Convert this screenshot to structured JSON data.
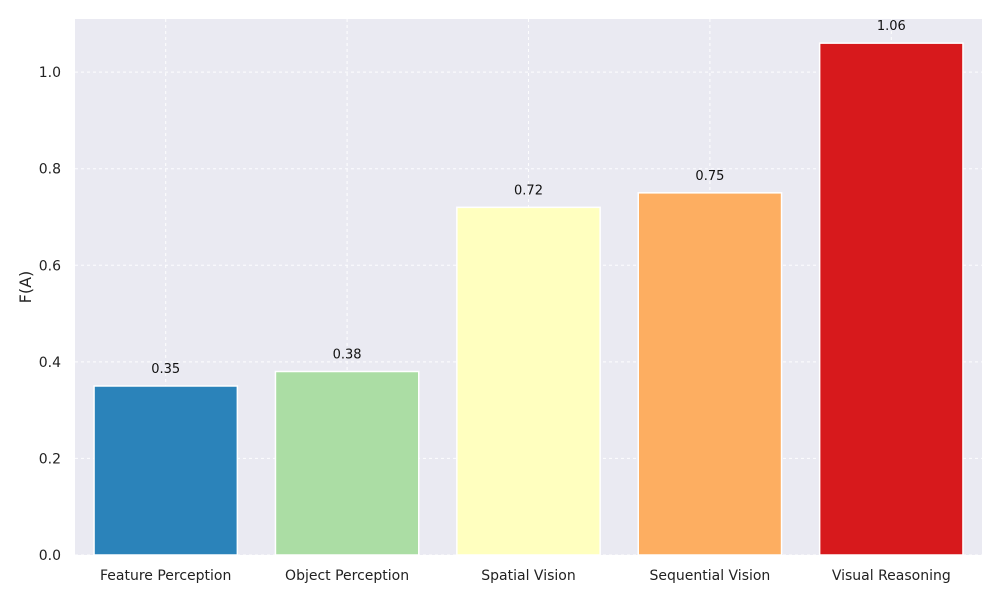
{
  "chart_data": {
    "type": "bar",
    "categories": [
      "Feature Perception",
      "Object Perception",
      "Spatial Vision",
      "Sequential Vision",
      "Visual Reasoning"
    ],
    "values": [
      0.35,
      0.38,
      0.72,
      0.75,
      1.06
    ],
    "data_labels": [
      "0.35",
      "0.38",
      "0.72",
      "0.75",
      "1.06"
    ],
    "colors": [
      "#2b83ba",
      "#abdda4",
      "#ffffbf",
      "#fdae61",
      "#d7191c"
    ],
    "title": "",
    "xlabel": "",
    "ylabel": "F(A)",
    "ylim": [
      0,
      1.11
    ],
    "y_ticks": [
      0.0,
      0.2,
      0.4,
      0.6,
      0.8,
      1.0
    ],
    "y_tick_labels": [
      "0.0",
      "0.2",
      "0.4",
      "0.6",
      "0.8",
      "1.0"
    ],
    "grid": true,
    "background": "#eaeaf2"
  }
}
